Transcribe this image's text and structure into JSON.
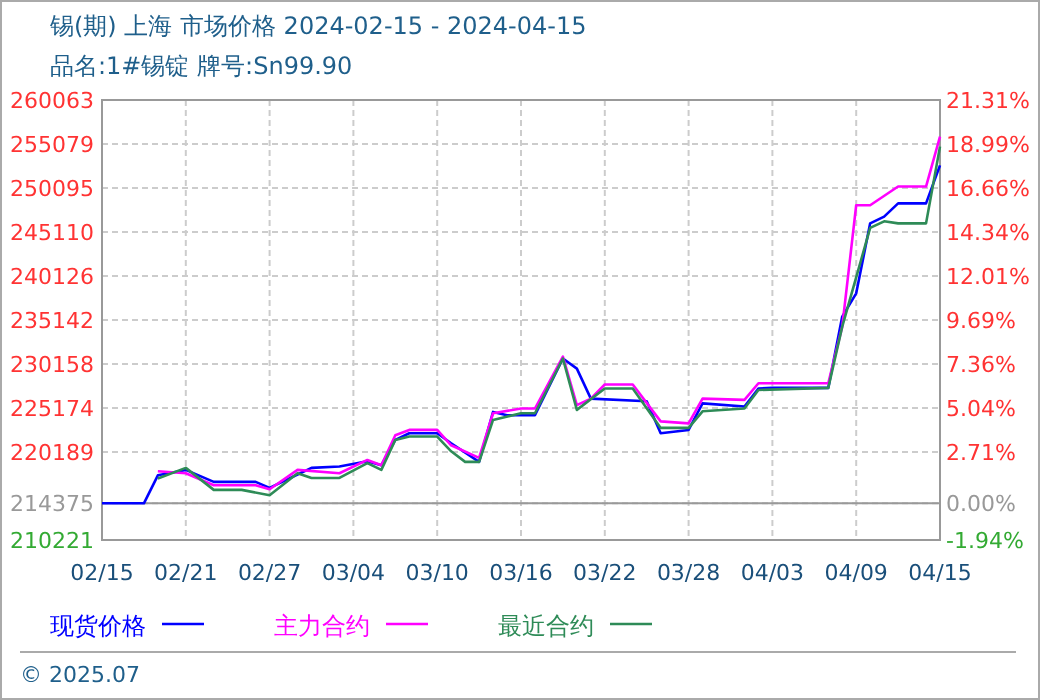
{
  "chart_data": {
    "type": "line",
    "title": "锡(期) 上海 市场价格 2024-02-15 - 2024-04-15",
    "subtitle": "品名:1#锡锭 牌号:Sn99.90",
    "xlim": [
      "2024-02-15",
      "2024-04-15"
    ],
    "xticks": [
      {
        "value": "2024-02-15",
        "label": "02/15"
      },
      {
        "value": "2024-02-21",
        "label": "02/21"
      },
      {
        "value": "2024-02-27",
        "label": "02/27"
      },
      {
        "value": "2024-03-04",
        "label": "03/04"
      },
      {
        "value": "2024-03-10",
        "label": "03/10"
      },
      {
        "value": "2024-03-16",
        "label": "03/16"
      },
      {
        "value": "2024-03-22",
        "label": "03/22"
      },
      {
        "value": "2024-03-28",
        "label": "03/28"
      },
      {
        "value": "2024-04-03",
        "label": "04/03"
      },
      {
        "value": "2024-04-09",
        "label": "04/09"
      },
      {
        "value": "2024-04-15",
        "label": "04/15"
      }
    ],
    "ylim": [
      210221,
      260063
    ],
    "yticks": [
      210221,
      214375,
      220189,
      225174,
      230158,
      235142,
      240126,
      245110,
      250095,
      255079,
      260063
    ],
    "y2lim": [
      -1.94,
      21.31
    ],
    "y2ticks": [
      {
        "value": -1.94,
        "label": "-1.94%"
      },
      {
        "value": 0,
        "label": "0.00%"
      },
      {
        "value": 2.71,
        "label": "2.71%"
      },
      {
        "value": 5.04,
        "label": "5.04%"
      },
      {
        "value": 7.36,
        "label": "7.36%"
      },
      {
        "value": 9.69,
        "label": "9.69%"
      },
      {
        "value": 12.01,
        "label": "12.01%"
      },
      {
        "value": 14.34,
        "label": "14.34%"
      },
      {
        "value": 16.66,
        "label": "16.66%"
      },
      {
        "value": 18.99,
        "label": "18.99%"
      },
      {
        "value": 21.31,
        "label": "21.31%"
      }
    ],
    "ref_lines": [
      {
        "axis": "y",
        "value": 214375,
        "color": "#999999"
      }
    ],
    "grid": true,
    "legend": "bottom",
    "marker": "none",
    "line_style": "solid",
    "series": [
      {
        "name": "现货价格",
        "color": "#0000ff",
        "x": [
          "2024-02-15",
          "2024-02-18",
          "2024-02-19",
          "2024-02-21",
          "2024-02-23",
          "2024-02-26",
          "2024-02-27",
          "2024-02-29",
          "2024-03-01",
          "2024-03-03",
          "2024-03-05",
          "2024-03-06",
          "2024-03-07",
          "2024-03-08",
          "2024-03-10",
          "2024-03-11",
          "2024-03-13",
          "2024-03-14",
          "2024-03-15",
          "2024-03-17",
          "2024-03-19",
          "2024-03-20",
          "2024-03-21",
          "2024-03-25",
          "2024-03-26",
          "2024-03-28",
          "2024-03-29",
          "2024-04-01",
          "2024-04-02",
          "2024-04-03",
          "2024-04-07",
          "2024-04-08",
          "2024-04-09",
          "2024-04-10",
          "2024-04-11",
          "2024-04-12",
          "2024-04-14",
          "2024-04-15"
        ],
        "values": [
          214375,
          214375,
          217550,
          218160,
          216800,
          216800,
          216120,
          217640,
          218390,
          218540,
          219140,
          218690,
          221560,
          222310,
          222310,
          221180,
          219070,
          224730,
          224350,
          224350,
          230780,
          229640,
          226240,
          225930,
          222310,
          222690,
          225700,
          225340,
          227380,
          227450,
          227450,
          235530,
          238160,
          246090,
          246850,
          248350,
          248350,
          252660
        ]
      },
      {
        "name": "主力合约",
        "color": "#ff00ff",
        "x": [
          "2024-02-19",
          "2024-02-21",
          "2024-02-23",
          "2024-02-26",
          "2024-02-27",
          "2024-02-29",
          "2024-03-03",
          "2024-03-05",
          "2024-03-06",
          "2024-03-07",
          "2024-03-08",
          "2024-03-10",
          "2024-03-11",
          "2024-03-13",
          "2024-03-14",
          "2024-03-16",
          "2024-03-17",
          "2024-03-19",
          "2024-03-20",
          "2024-03-21",
          "2024-03-22",
          "2024-03-24",
          "2024-03-26",
          "2024-03-28",
          "2024-03-29",
          "2024-04-01",
          "2024-04-02",
          "2024-04-07",
          "2024-04-08",
          "2024-04-09",
          "2024-04-10",
          "2024-04-12",
          "2024-04-14",
          "2024-04-15"
        ],
        "values": [
          218010,
          217780,
          216420,
          216420,
          215970,
          218160,
          217780,
          219290,
          218690,
          222080,
          222690,
          222690,
          220950,
          219520,
          224580,
          225110,
          225110,
          231000,
          225490,
          226240,
          227830,
          227830,
          223660,
          223430,
          226240,
          226090,
          227980,
          227980,
          234390,
          248140,
          248140,
          250260,
          250260,
          255920
        ]
      },
      {
        "name": "最近合约",
        "color": "#2e8b57",
        "x": [
          "2024-02-19",
          "2024-02-21",
          "2024-02-23",
          "2024-02-25",
          "2024-02-27",
          "2024-02-29",
          "2024-03-01",
          "2024-03-03",
          "2024-03-05",
          "2024-03-06",
          "2024-03-07",
          "2024-03-08",
          "2024-03-10",
          "2024-03-11",
          "2024-03-12",
          "2024-03-13",
          "2024-03-14",
          "2024-03-16",
          "2024-03-17",
          "2024-03-19",
          "2024-03-20",
          "2024-03-22",
          "2024-03-24",
          "2024-03-26",
          "2024-03-28",
          "2024-03-29",
          "2024-04-01",
          "2024-04-02",
          "2024-04-07",
          "2024-04-08",
          "2024-04-10",
          "2024-04-11",
          "2024-04-12",
          "2024-04-14",
          "2024-04-15"
        ],
        "values": [
          217180,
          218390,
          215900,
          215900,
          215290,
          217780,
          217250,
          217250,
          218920,
          218160,
          221560,
          221940,
          221940,
          220270,
          219070,
          219070,
          223820,
          224580,
          224580,
          230780,
          224960,
          227380,
          227380,
          222920,
          222920,
          224800,
          225110,
          227220,
          227450,
          234390,
          245570,
          246320,
          246090,
          246090,
          254780
        ]
      }
    ],
    "annotations": [
      "© 2025.07"
    ]
  }
}
